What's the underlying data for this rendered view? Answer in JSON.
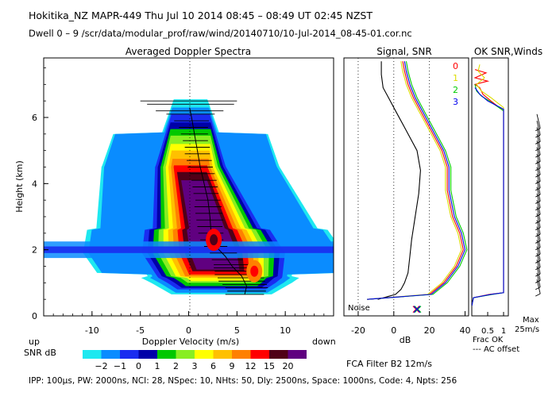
{
  "header": {
    "line1": "Hokitika_NZ  MAPR-449  Thu Jul 10 2014 08:45 – 08:49 UT 02:45 NZST",
    "line2": "Dwell  0 –  9   /scr/data/modular_prof/raw/wind/20140710/10-Jul-2014_08-45-01.cor.nc"
  },
  "footer": {
    "params": "IPP: 100μs,  PW: 2000ns,  NCI:  28,  NSpec: 10, NHts: 50,  Dly: 2500ns,  Space: 1000ns,  Code: 4,  Npts: 256",
    "fca_filter": "FCA Filter B2 12m/s"
  },
  "colors": {
    "accent_red": "#ff0000",
    "accent_yellow": "#dddd00",
    "accent_green": "#00cc00",
    "accent_blue": "#0000ee"
  },
  "chart_data": [
    {
      "id": "doppler_spectra",
      "type": "heatmap",
      "title": "Averaged Doppler Spectra",
      "xlabel": "Doppler Velocity (m/s)",
      "ylabel": "Height (km)",
      "xlim": [
        -15,
        15
      ],
      "ylim": [
        0,
        7.8
      ],
      "x_ticks": [
        -10,
        -5,
        0,
        5,
        10
      ],
      "y_ticks": [
        0,
        2,
        4,
        6
      ],
      "x_end_labels": {
        "left": "up",
        "right": "down"
      },
      "colorbar": {
        "label": "SNR dB",
        "tick_labels": [
          "−2",
          "−1",
          "0",
          "1",
          "2",
          "3",
          "6",
          "9",
          "12",
          "15",
          "20"
        ],
        "colors": [
          "#1ee8f0",
          "#0a8cff",
          "#1a2cf0",
          "#0000a8",
          "#00c800",
          "#88ee22",
          "#ffff00",
          "#ffc000",
          "#ff8000",
          "#ff0000",
          "#500018",
          "#600080"
        ]
      },
      "mean_velocity_profile": [
        {
          "height": 0.65,
          "velocity": 5.8
        },
        {
          "height": 0.9,
          "velocity": 6.0
        },
        {
          "height": 1.2,
          "velocity": 5.5
        },
        {
          "height": 1.5,
          "velocity": 4.5
        },
        {
          "height": 1.8,
          "velocity": 3.8
        },
        {
          "height": 2.1,
          "velocity": 2.8
        },
        {
          "height": 2.3,
          "velocity": 2.4
        },
        {
          "height": 2.6,
          "velocity": 2.3
        },
        {
          "height": 3.0,
          "velocity": 2.2
        },
        {
          "height": 3.5,
          "velocity": 2.0
        },
        {
          "height": 4.0,
          "velocity": 1.6
        },
        {
          "height": 4.5,
          "velocity": 1.2
        },
        {
          "height": 5.0,
          "velocity": 0.9
        },
        {
          "height": 5.5,
          "velocity": 0.6
        },
        {
          "height": 6.0,
          "velocity": 0.3
        },
        {
          "height": 6.3,
          "velocity": 0.1
        }
      ],
      "spectral_width_bars": [
        {
          "height": 0.65,
          "velocity": 5.8,
          "half_width": 2.0
        },
        {
          "height": 0.75,
          "velocity": 6.0,
          "half_width": 2.0
        },
        {
          "height": 0.85,
          "velocity": 6.0,
          "half_width": 2.2
        },
        {
          "height": 0.95,
          "velocity": 5.8,
          "half_width": 2.3
        },
        {
          "height": 1.05,
          "velocity": 5.5,
          "half_width": 2.4
        },
        {
          "height": 1.15,
          "velocity": 5.4,
          "half_width": 2.4
        },
        {
          "height": 1.25,
          "velocity": 5.0,
          "half_width": 2.3
        },
        {
          "height": 1.35,
          "velocity": 4.8,
          "half_width": 2.1
        },
        {
          "height": 1.45,
          "velocity": 4.6,
          "half_width": 2.0
        },
        {
          "height": 1.55,
          "velocity": 4.4,
          "half_width": 1.8
        },
        {
          "height": 1.7,
          "velocity": 4.0,
          "half_width": 1.6
        },
        {
          "height": 1.9,
          "velocity": 3.6,
          "half_width": 1.4
        },
        {
          "height": 2.1,
          "velocity": 2.8,
          "half_width": 1.2
        },
        {
          "height": 2.3,
          "velocity": 2.4,
          "half_width": 1.2
        },
        {
          "height": 2.5,
          "velocity": 2.3,
          "half_width": 1.3
        },
        {
          "height": 2.7,
          "velocity": 2.2,
          "half_width": 1.3
        },
        {
          "height": 2.9,
          "velocity": 2.2,
          "half_width": 1.4
        },
        {
          "height": 3.1,
          "velocity": 2.1,
          "half_width": 1.4
        },
        {
          "height": 3.3,
          "velocity": 2.0,
          "half_width": 1.4
        },
        {
          "height": 3.5,
          "velocity": 2.0,
          "half_width": 1.3
        },
        {
          "height": 3.7,
          "velocity": 1.8,
          "half_width": 1.3
        },
        {
          "height": 3.9,
          "velocity": 1.7,
          "half_width": 1.3
        },
        {
          "height": 4.1,
          "velocity": 1.6,
          "half_width": 1.3
        },
        {
          "height": 4.3,
          "velocity": 1.4,
          "half_width": 1.3
        },
        {
          "height": 4.5,
          "velocity": 1.2,
          "half_width": 1.3
        },
        {
          "height": 4.7,
          "velocity": 1.1,
          "half_width": 1.3
        },
        {
          "height": 4.9,
          "velocity": 0.9,
          "half_width": 1.3
        },
        {
          "height": 5.1,
          "velocity": 0.9,
          "half_width": 1.3
        },
        {
          "height": 5.3,
          "velocity": 0.7,
          "half_width": 1.3
        },
        {
          "height": 5.5,
          "velocity": 0.6,
          "half_width": 1.4
        },
        {
          "height": 5.7,
          "velocity": 0.5,
          "half_width": 1.5
        },
        {
          "height": 5.9,
          "velocity": 0.3,
          "half_width": 1.8
        },
        {
          "height": 6.1,
          "velocity": 0.2,
          "half_width": 2.5
        },
        {
          "height": 6.2,
          "velocity": 0.1,
          "half_width": 3.5
        },
        {
          "height": 6.4,
          "velocity": 0.2,
          "half_width": 4.5
        },
        {
          "height": 6.5,
          "velocity": 0.0,
          "half_width": 5.0
        }
      ],
      "peak_snr_regions": [
        {
          "label": "peak",
          "height": 2.3,
          "velocity": 2.6,
          "snr_db": 20
        },
        {
          "label": "secondary",
          "height": 1.35,
          "velocity": 6.8,
          "snr_db": 15
        }
      ]
    },
    {
      "id": "signal_snr",
      "type": "line",
      "title": "Signal, SNR",
      "xlabel": "dB",
      "xlim": [
        -28,
        42
      ],
      "ylim": [
        0,
        7.8
      ],
      "x_ticks": [
        -20,
        0,
        20,
        40
      ],
      "noise_label": "Noise",
      "noise_floor_db": 13,
      "series": [
        {
          "name": "signal",
          "color": "#000000",
          "points": [
            [
              -9,
              0.5
            ],
            [
              1,
              0.65
            ],
            [
              4,
              0.8
            ],
            [
              6,
              1.0
            ],
            [
              8,
              1.3
            ],
            [
              9,
              1.8
            ],
            [
              10,
              2.3
            ],
            [
              12,
              3.0
            ],
            [
              14,
              3.7
            ],
            [
              15,
              4.4
            ],
            [
              13,
              5.0
            ],
            [
              6,
              5.7
            ],
            [
              1,
              6.2
            ],
            [
              -3,
              6.6
            ],
            [
              -6,
              6.9
            ],
            [
              -7,
              7.3
            ],
            [
              -7,
              7.7
            ]
          ]
        },
        {
          "name": "0",
          "color": "#ff0000",
          "points": [
            [
              -15,
              0.5
            ],
            [
              20,
              0.65
            ],
            [
              28,
              1.0
            ],
            [
              35,
              1.5
            ],
            [
              39,
              2.0
            ],
            [
              37,
              2.5
            ],
            [
              33,
              3.0
            ],
            [
              30,
              3.8
            ],
            [
              30,
              4.5
            ],
            [
              27,
              5.0
            ],
            [
              21,
              5.6
            ],
            [
              15,
              6.2
            ],
            [
              11,
              6.6
            ],
            [
              8,
              7.0
            ],
            [
              6,
              7.4
            ],
            [
              5,
              7.7
            ]
          ]
        },
        {
          "name": "1",
          "color": "#dddd00",
          "points": [
            [
              -15,
              0.5
            ],
            [
              19,
              0.65
            ],
            [
              27,
              1.0
            ],
            [
              34,
              1.5
            ],
            [
              38,
              2.0
            ],
            [
              36,
              2.5
            ],
            [
              32,
              3.0
            ],
            [
              29,
              3.8
            ],
            [
              29,
              4.5
            ],
            [
              26,
              5.0
            ],
            [
              20,
              5.6
            ],
            [
              14,
              6.2
            ],
            [
              10,
              6.6
            ],
            [
              7,
              7.0
            ],
            [
              5,
              7.4
            ],
            [
              4,
              7.7
            ]
          ]
        },
        {
          "name": "2",
          "color": "#00cc00",
          "points": [
            [
              -15,
              0.5
            ],
            [
              22,
              0.65
            ],
            [
              30,
              1.0
            ],
            [
              37,
              1.5
            ],
            [
              41,
              2.0
            ],
            [
              39,
              2.5
            ],
            [
              35,
              3.0
            ],
            [
              32,
              3.8
            ],
            [
              32,
              4.5
            ],
            [
              29,
              5.0
            ],
            [
              23,
              5.6
            ],
            [
              17,
              6.2
            ],
            [
              13,
              6.6
            ],
            [
              10,
              7.0
            ],
            [
              8,
              7.4
            ],
            [
              7,
              7.7
            ]
          ]
        },
        {
          "name": "3",
          "color": "#0000ee",
          "points": [
            [
              -15,
              0.5
            ],
            [
              21,
              0.65
            ],
            [
              29,
              1.0
            ],
            [
              36,
              1.5
            ],
            [
              40,
              2.0
            ],
            [
              38,
              2.5
            ],
            [
              34,
              3.0
            ],
            [
              31,
              3.8
            ],
            [
              31,
              4.5
            ],
            [
              28,
              5.0
            ],
            [
              22,
              5.6
            ],
            [
              16,
              6.2
            ],
            [
              12,
              6.6
            ],
            [
              9,
              7.0
            ],
            [
              7,
              7.4
            ],
            [
              6,
              7.7
            ]
          ]
        }
      ]
    },
    {
      "id": "snr_ok_winds",
      "type": "line",
      "title": "OK SNR,Winds",
      "xlim": [
        0,
        1.15
      ],
      "ylim": [
        0,
        7.8
      ],
      "x_ticks": [
        0.5,
        1
      ],
      "x_tick_labels": [
        "0.5",
        "1"
      ],
      "legend": [
        "0",
        "1",
        "2",
        "3"
      ],
      "xlabel_lines": [
        "Frac OK",
        "--- AC offset"
      ],
      "wind_scale_label": [
        "Max",
        "25m/s"
      ],
      "series": [
        {
          "name": "0",
          "color": "#ff0000",
          "points": [
            [
              0.0,
              0.3
            ],
            [
              0.05,
              0.55
            ],
            [
              0.55,
              0.65
            ],
            [
              1.0,
              0.7
            ],
            [
              1.0,
              6.2
            ],
            [
              0.6,
              6.5
            ],
            [
              0.35,
              6.7
            ],
            [
              0.25,
              6.9
            ],
            [
              0.1,
              7.0
            ],
            [
              0.5,
              7.1
            ],
            [
              0.1,
              7.2
            ],
            [
              0.45,
              7.35
            ],
            [
              0.1,
              7.45
            ]
          ]
        },
        {
          "name": "1",
          "color": "#dddd00",
          "points": [
            [
              0.0,
              0.3
            ],
            [
              0.05,
              0.55
            ],
            [
              0.6,
              0.65
            ],
            [
              1.0,
              0.7
            ],
            [
              1.0,
              6.3
            ],
            [
              0.6,
              6.6
            ],
            [
              0.3,
              6.8
            ],
            [
              0.15,
              7.0
            ],
            [
              0.4,
              7.2
            ],
            [
              0.2,
              7.4
            ],
            [
              0.25,
              7.6
            ]
          ]
        },
        {
          "name": "2",
          "color": "#00cc00",
          "points": [
            [
              0.0,
              0.3
            ],
            [
              0.05,
              0.55
            ],
            [
              0.65,
              0.65
            ],
            [
              1.0,
              0.7
            ],
            [
              1.0,
              6.2
            ],
            [
              0.55,
              6.5
            ],
            [
              0.3,
              6.65
            ],
            [
              0.15,
              6.8
            ],
            [
              0.1,
              7.0
            ]
          ]
        },
        {
          "name": "3",
          "color": "#0000ee",
          "points": [
            [
              0.0,
              0.3
            ],
            [
              0.05,
              0.55
            ],
            [
              0.6,
              0.65
            ],
            [
              1.0,
              0.7
            ],
            [
              1.0,
              6.25
            ],
            [
              0.5,
              6.5
            ],
            [
              0.25,
              6.7
            ],
            [
              0.1,
              6.9
            ]
          ]
        }
      ],
      "wind_barbs": [
        {
          "height": 1.1,
          "direction_deg": 245
        },
        {
          "height": 1.3,
          "direction_deg": 245
        },
        {
          "height": 1.5,
          "direction_deg": 245
        },
        {
          "height": 1.7,
          "direction_deg": 245
        },
        {
          "height": 1.9,
          "direction_deg": 245
        },
        {
          "height": 2.1,
          "direction_deg": 245
        },
        {
          "height": 2.3,
          "direction_deg": 245
        },
        {
          "height": 2.5,
          "direction_deg": 245
        },
        {
          "height": 2.7,
          "direction_deg": 245
        },
        {
          "height": 2.9,
          "direction_deg": 245
        },
        {
          "height": 3.1,
          "direction_deg": 245
        },
        {
          "height": 3.3,
          "direction_deg": 245
        },
        {
          "height": 3.5,
          "direction_deg": 245
        },
        {
          "height": 3.7,
          "direction_deg": 245
        },
        {
          "height": 3.9,
          "direction_deg": 245
        },
        {
          "height": 4.1,
          "direction_deg": 245
        },
        {
          "height": 4.3,
          "direction_deg": 245
        },
        {
          "height": 4.5,
          "direction_deg": 245
        },
        {
          "height": 4.7,
          "direction_deg": 245
        },
        {
          "height": 4.9,
          "direction_deg": 245
        },
        {
          "height": 5.1,
          "direction_deg": 245
        },
        {
          "height": 5.3,
          "direction_deg": 245
        },
        {
          "height": 5.5,
          "direction_deg": 245
        },
        {
          "height": 5.7,
          "direction_deg": 245
        },
        {
          "height": 5.9,
          "direction_deg": 245
        },
        {
          "height": 6.1,
          "direction_deg": 245
        }
      ]
    }
  ]
}
